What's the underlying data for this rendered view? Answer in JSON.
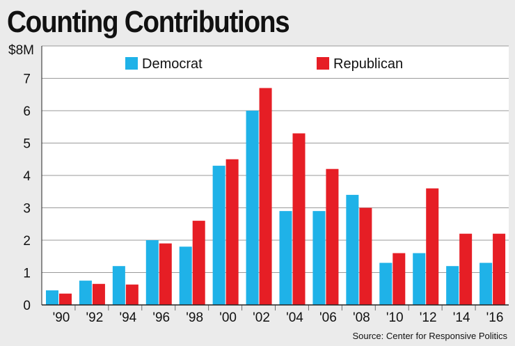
{
  "chart_data": {
    "type": "bar",
    "title": "Counting Contributions",
    "source": "Source: Center for Responsive Politics",
    "xlabel": "",
    "ylabel": "",
    "categories": [
      "'90",
      "'92",
      "'94",
      "'96",
      "'98",
      "'00",
      "'02",
      "'04",
      "'06",
      "'08",
      "'10",
      "'12",
      "'14",
      "'16"
    ],
    "series": [
      {
        "name": "Democrat",
        "color": "#1fb2e8",
        "values": [
          0.45,
          0.75,
          1.2,
          2.0,
          1.8,
          4.3,
          6.0,
          2.9,
          2.9,
          3.4,
          1.3,
          1.6,
          1.2,
          1.3
        ]
      },
      {
        "name": "Republican",
        "color": "#e61e25",
        "values": [
          0.35,
          0.65,
          0.63,
          1.9,
          2.6,
          4.5,
          6.7,
          5.3,
          4.2,
          3.0,
          1.6,
          3.6,
          2.2,
          2.2
        ]
      }
    ],
    "ylim": [
      0,
      8
    ],
    "yticks": [
      "0",
      "1",
      "2",
      "3",
      "4",
      "5",
      "6",
      "7",
      "$8M"
    ],
    "grid": true,
    "legend": "top"
  }
}
